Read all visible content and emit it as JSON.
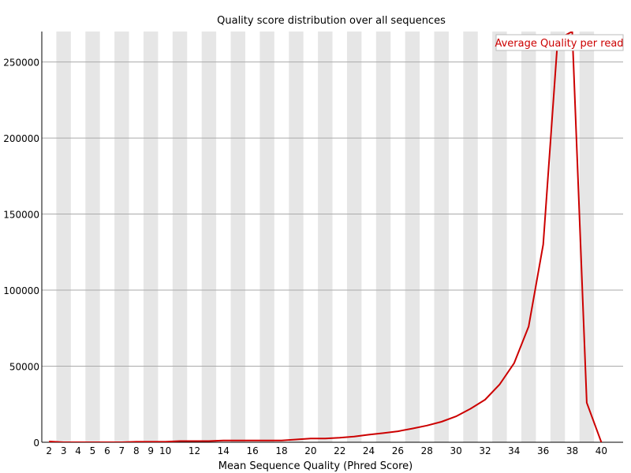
{
  "chart_data": {
    "type": "line",
    "title": "Quality score distribution over all sequences",
    "xlabel": "Mean Sequence Quality (Phred Score)",
    "ylabel": "",
    "x": [
      2,
      3,
      4,
      5,
      6,
      7,
      8,
      9,
      10,
      11,
      12,
      13,
      14,
      15,
      16,
      17,
      18,
      19,
      20,
      21,
      22,
      23,
      24,
      25,
      26,
      27,
      28,
      29,
      30,
      31,
      32,
      33,
      34,
      35,
      36,
      37,
      38,
      39,
      40
    ],
    "x_tick_labels": [
      "2",
      "3",
      "4",
      "5",
      "6",
      "7",
      "8",
      "9",
      "10",
      "12",
      "14",
      "16",
      "18",
      "20",
      "22",
      "24",
      "26",
      "28",
      "30",
      "32",
      "34",
      "36",
      "38",
      "40"
    ],
    "xlim": [
      1.5,
      41.5
    ],
    "ylim": [
      0,
      270000
    ],
    "y_ticks": [
      0,
      50000,
      100000,
      150000,
      200000,
      250000
    ],
    "y_tick_labels": [
      "0",
      "50000",
      "100000",
      "150000",
      "200000",
      "250000"
    ],
    "grid": true,
    "legend_position": "top-right",
    "series": [
      {
        "name": "Average Quality per read",
        "color": "#cc0000",
        "values": [
          500,
          0,
          0,
          0,
          0,
          0,
          300,
          300,
          300,
          800,
          800,
          800,
          1200,
          1200,
          1200,
          1200,
          1200,
          1800,
          2500,
          2500,
          3000,
          3800,
          5000,
          6000,
          7200,
          9000,
          11000,
          13500,
          17000,
          22000,
          28000,
          38000,
          52000,
          76000,
          130000,
          265000,
          270000,
          26000,
          0
        ]
      }
    ],
    "colors": {
      "stripe": "#e6e6e6",
      "background": "#ffffff",
      "gridline": "#aaaaaa",
      "axis": "#000000",
      "legend_border": "#bbbbbb"
    }
  }
}
